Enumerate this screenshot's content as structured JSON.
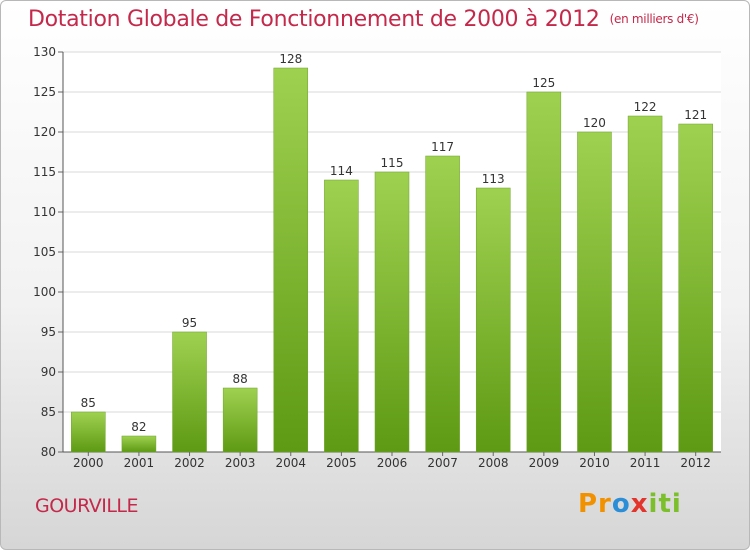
{
  "title": "Dotation Globale de Fonctionnement de 2000 à 2012",
  "unit": "(en milliers d'€)",
  "place": "GOURVILLE",
  "logo": {
    "p1": "Pr",
    "p2": "o",
    "p3": "x",
    "p4": "iti"
  },
  "colors": {
    "bar_top": "#9fd150",
    "bar_bottom": "#5e9a14",
    "title": "#c4284a"
  },
  "chart_data": {
    "type": "bar",
    "title": "Dotation Globale de Fonctionnement de 2000 à 2012",
    "xlabel": "",
    "ylabel": "",
    "categories": [
      "2000",
      "2001",
      "2002",
      "2003",
      "2004",
      "2005",
      "2006",
      "2007",
      "2008",
      "2009",
      "2010",
      "2011",
      "2012"
    ],
    "values": [
      85,
      82,
      95,
      88,
      128,
      114,
      115,
      117,
      113,
      125,
      120,
      122,
      121
    ],
    "ylim": [
      80,
      130
    ],
    "yticks": [
      80,
      85,
      90,
      95,
      100,
      105,
      110,
      115,
      120,
      125,
      130
    ],
    "grid": true,
    "legend": "none"
  }
}
